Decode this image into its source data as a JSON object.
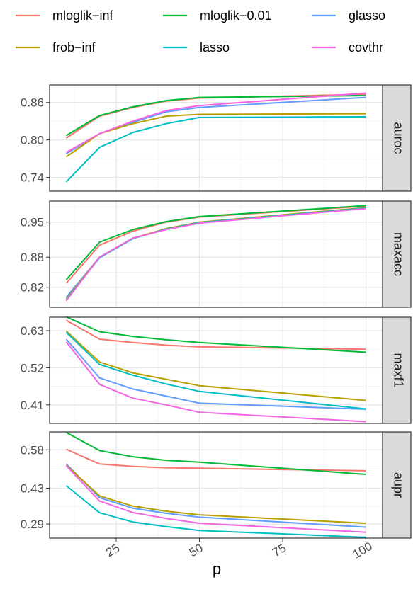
{
  "legend": {
    "entries": [
      {
        "label": "mloglik−inf",
        "color": "#F8766D"
      },
      {
        "label": "mloglik−0.01",
        "color": "#00BA38"
      },
      {
        "label": "glasso",
        "color": "#619CFF"
      },
      {
        "label": "frob−inf",
        "color": "#B79F00"
      },
      {
        "label": "lasso",
        "color": "#00BFC4"
      },
      {
        "label": "covthr",
        "color": "#F564E3"
      }
    ]
  },
  "chart_data": {
    "type": "line",
    "xlabel": "p",
    "ylabel": "",
    "x": [
      10,
      20,
      30,
      40,
      50,
      100
    ],
    "xlim": [
      5,
      105
    ],
    "x_ticks": [
      25,
      50,
      75,
      100
    ],
    "x_tick_labels": [
      "25",
      "50",
      "75",
      "100"
    ],
    "grid": true,
    "legend_position": "top",
    "facets": [
      {
        "strip": "auroc",
        "ylim": [
          0.718,
          0.888
        ],
        "y_ticks": [
          0.74,
          0.8,
          0.86
        ],
        "y_tick_labels": [
          "0.74",
          "0.80",
          "0.86"
        ],
        "series": [
          {
            "name": "mloglik−inf",
            "color": "#F8766D",
            "values": [
              0.803,
              0.838,
              0.852,
              0.862,
              0.867,
              0.873
            ]
          },
          {
            "name": "mloglik−0.01",
            "color": "#00BA38",
            "values": [
              0.807,
              0.839,
              0.853,
              0.863,
              0.868,
              0.871
            ]
          },
          {
            "name": "glasso",
            "color": "#619CFF",
            "values": [
              0.778,
              0.81,
              0.828,
              0.845,
              0.852,
              0.868
            ]
          },
          {
            "name": "frob−inf",
            "color": "#B79F00",
            "values": [
              0.773,
              0.81,
              0.826,
              0.838,
              0.841,
              0.842
            ]
          },
          {
            "name": "lasso",
            "color": "#00BFC4",
            "values": [
              0.733,
              0.788,
              0.812,
              0.826,
              0.836,
              0.837
            ]
          },
          {
            "name": "covthr",
            "color": "#F564E3",
            "values": [
              0.78,
              0.81,
              0.83,
              0.847,
              0.855,
              0.875
            ]
          }
        ]
      },
      {
        "strip": "maxacc",
        "ylim": [
          0.78,
          0.992
        ],
        "y_ticks": [
          0.82,
          0.88,
          0.95
        ],
        "y_tick_labels": [
          "0.82",
          "0.88",
          "0.95"
        ],
        "series": [
          {
            "name": "mloglik−inf",
            "color": "#F8766D",
            "values": [
              0.828,
              0.904,
              0.932,
              0.95,
              0.96,
              0.982
            ]
          },
          {
            "name": "mloglik−0.01",
            "color": "#00BA38",
            "values": [
              0.835,
              0.91,
              0.935,
              0.951,
              0.961,
              0.983
            ]
          },
          {
            "name": "glasso",
            "color": "#619CFF",
            "values": [
              0.8,
              0.88,
              0.918,
              0.936,
              0.948,
              0.978
            ]
          },
          {
            "name": "frob−inf",
            "color": "#B79F00",
            "values": [
              0.797,
              0.88,
              0.918,
              0.937,
              0.95,
              0.979
            ]
          },
          {
            "name": "lasso",
            "color": "#00BFC4",
            "values": [
              0.795,
              0.879,
              0.917,
              0.936,
              0.949,
              0.978
            ]
          },
          {
            "name": "covthr",
            "color": "#F564E3",
            "values": [
              0.793,
              0.88,
              0.918,
              0.935,
              0.948,
              0.977
            ]
          }
        ]
      },
      {
        "strip": "maxf1",
        "ylim": [
          0.355,
          0.67
        ],
        "y_ticks": [
          0.41,
          0.52,
          0.63
        ],
        "y_tick_labels": [
          "0.41",
          "0.52",
          "0.63"
        ],
        "series": [
          {
            "name": "mloglik−inf",
            "color": "#F8766D",
            "values": [
              0.661,
              0.605,
              0.595,
              0.587,
              0.582,
              0.575
            ]
          },
          {
            "name": "mloglik−0.01",
            "color": "#00BA38",
            "values": [
              0.671,
              0.627,
              0.613,
              0.603,
              0.595,
              0.566
            ]
          },
          {
            "name": "glasso",
            "color": "#619CFF",
            "values": [
              0.605,
              0.49,
              0.457,
              0.436,
              0.415,
              0.397
            ]
          },
          {
            "name": "frob−inf",
            "color": "#B79F00",
            "values": [
              0.629,
              0.537,
              0.505,
              0.486,
              0.467,
              0.423
            ]
          },
          {
            "name": "lasso",
            "color": "#00BFC4",
            "values": [
              0.625,
              0.53,
              0.498,
              0.472,
              0.45,
              0.398
            ]
          },
          {
            "name": "covthr",
            "color": "#F564E3",
            "values": [
              0.597,
              0.471,
              0.43,
              0.41,
              0.388,
              0.36
            ]
          }
        ]
      },
      {
        "strip": "aupr",
        "ylim": [
          0.235,
          0.65
        ],
        "y_ticks": [
          0.29,
          0.43,
          0.58
        ],
        "y_tick_labels": [
          "0.29",
          "0.43",
          "0.58"
        ],
        "series": [
          {
            "name": "mloglik−inf",
            "color": "#F8766D",
            "values": [
              0.582,
              0.525,
              0.515,
              0.51,
              0.508,
              0.498
            ]
          },
          {
            "name": "mloglik−0.01",
            "color": "#00BA38",
            "values": [
              0.648,
              0.577,
              0.553,
              0.539,
              0.532,
              0.484
            ]
          },
          {
            "name": "glasso",
            "color": "#619CFF",
            "values": [
              0.525,
              0.393,
              0.352,
              0.332,
              0.317,
              0.278
            ]
          },
          {
            "name": "frob−inf",
            "color": "#B79F00",
            "values": [
              0.52,
              0.4,
              0.36,
              0.34,
              0.326,
              0.293
            ]
          },
          {
            "name": "lasso",
            "color": "#00BFC4",
            "values": [
              0.44,
              0.334,
              0.298,
              0.28,
              0.265,
              0.238
            ]
          },
          {
            "name": "covthr",
            "color": "#F564E3",
            "values": [
              0.518,
              0.38,
              0.335,
              0.312,
              0.293,
              0.258
            ]
          }
        ]
      }
    ]
  }
}
